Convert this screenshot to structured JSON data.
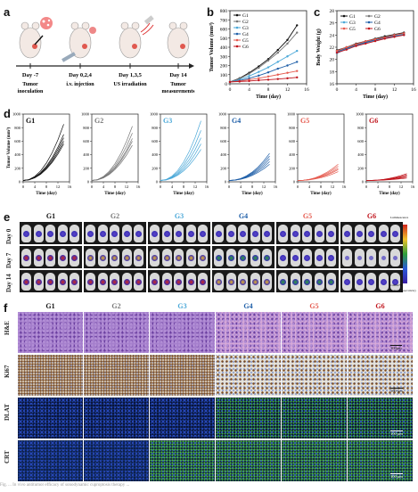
{
  "figure": {
    "panels": [
      "a",
      "b",
      "c",
      "d",
      "e",
      "f"
    ],
    "panel_a": {
      "timeline": [
        {
          "day": "Day -7",
          "event": "Tumor inoculation"
        },
        {
          "day": "Day 0,2,4",
          "event": "i.v. injection"
        },
        {
          "day": "Day 1,3,5",
          "event": "US irradiation"
        },
        {
          "day": "Day 14",
          "event": "Tumor measurements"
        }
      ]
    },
    "groups": [
      "G1",
      "G2",
      "G3",
      "G4",
      "G5",
      "G6"
    ],
    "group_colors": [
      "#111111",
      "#777777",
      "#4aa8d8",
      "#1f5fa8",
      "#e55a4e",
      "#c0141c"
    ],
    "panel_e": {
      "rows": [
        "Day 0",
        "Day 7",
        "Day 14"
      ],
      "scale_top": "Luminescence",
      "scale_max": "1.000e+7",
      "scale_min": "1.000e+5",
      "scale_unit": "Radiance (p/sec/cm²/sr)"
    },
    "panel_f": {
      "rows": [
        "H&E",
        "Ki67",
        "DLAT",
        "CRT"
      ],
      "scale_bars": [
        "100μm",
        "100 μm",
        "100 μm",
        "100 μm"
      ]
    },
    "caption": "Fig. ... In vivo antitumor efficacy of sonodynamic cuproptosis therapy ..."
  },
  "chart_data": [
    {
      "type": "line",
      "panel": "b",
      "xlabel": "Time (day)",
      "ylabel": "Tumor Volume (mm³)",
      "xlim": [
        0,
        16
      ],
      "ylim": [
        0,
        800
      ],
      "xticks": [
        0,
        4,
        8,
        12,
        16
      ],
      "yticks": [
        0,
        100,
        200,
        300,
        400,
        500,
        600,
        700,
        800
      ],
      "x": [
        0,
        2,
        4,
        6,
        8,
        10,
        12,
        14
      ],
      "legend": "top-left",
      "series": [
        {
          "name": "G1",
          "values": [
            20,
            60,
            120,
            190,
            270,
            370,
            480,
            640
          ]
        },
        {
          "name": "G2",
          "values": [
            20,
            55,
            110,
            175,
            255,
            340,
            440,
            560
          ]
        },
        {
          "name": "G3",
          "values": [
            20,
            45,
            85,
            130,
            180,
            240,
            300,
            360
          ]
        },
        {
          "name": "G4",
          "values": [
            20,
            35,
            60,
            90,
            125,
            165,
            200,
            240
          ]
        },
        {
          "name": "G5",
          "values": [
            20,
            30,
            45,
            60,
            80,
            100,
            120,
            140
          ]
        },
        {
          "name": "G6",
          "values": [
            20,
            25,
            30,
            38,
            45,
            52,
            60,
            70
          ]
        }
      ]
    },
    {
      "type": "line",
      "panel": "c",
      "xlabel": "Time (day)",
      "ylabel": "Body Weight (g)",
      "xlim": [
        0,
        16
      ],
      "ylim": [
        16,
        28
      ],
      "xticks": [
        0,
        4,
        8,
        12,
        16
      ],
      "yticks": [
        16,
        18,
        20,
        22,
        24,
        26,
        28
      ],
      "x": [
        0,
        2,
        4,
        6,
        8,
        10,
        12,
        14
      ],
      "legend": "top-left",
      "series": [
        {
          "name": "G1",
          "values": [
            21.5,
            22.0,
            22.6,
            23.0,
            23.4,
            23.8,
            24.1,
            24.4
          ]
        },
        {
          "name": "G2",
          "values": [
            21.3,
            21.9,
            22.4,
            22.9,
            23.2,
            23.6,
            24.0,
            24.2
          ]
        },
        {
          "name": "G3",
          "values": [
            21.0,
            21.7,
            22.3,
            22.7,
            23.1,
            23.5,
            23.9,
            24.1
          ]
        },
        {
          "name": "G4",
          "values": [
            21.2,
            21.8,
            22.3,
            22.8,
            23.2,
            23.5,
            23.8,
            24.0
          ]
        },
        {
          "name": "G5",
          "values": [
            21.4,
            22.0,
            22.5,
            23.0,
            23.3,
            23.6,
            24.0,
            24.3
          ]
        },
        {
          "name": "G6",
          "values": [
            21.1,
            21.6,
            22.2,
            22.6,
            23.0,
            23.4,
            23.7,
            24.0
          ]
        }
      ]
    },
    {
      "type": "line",
      "panel": "d",
      "xlabel": "Time (day)",
      "ylabel": "Tumor Volume (mm³)",
      "xlim": [
        0,
        16
      ],
      "ylim": [
        0,
        1000
      ],
      "xticks": [
        0,
        4,
        8,
        12,
        16
      ],
      "yticks": [
        0,
        200,
        400,
        600,
        800,
        1000
      ],
      "x": [
        0,
        2,
        4,
        6,
        8,
        10,
        12,
        14
      ],
      "subplots": [
        {
          "name": "G1",
          "finals": [
            850,
            700,
            650,
            600,
            560
          ]
        },
        {
          "name": "G2",
          "finals": [
            820,
            720,
            640,
            600,
            540
          ]
        },
        {
          "name": "G3",
          "finals": [
            900,
            760,
            650,
            560,
            480
          ]
        },
        {
          "name": "G4",
          "finals": [
            420,
            380,
            340,
            300,
            260
          ]
        },
        {
          "name": "G5",
          "finals": [
            260,
            230,
            200,
            180,
            150
          ]
        },
        {
          "name": "G6",
          "finals": [
            120,
            100,
            85,
            70,
            55
          ]
        }
      ]
    }
  ]
}
